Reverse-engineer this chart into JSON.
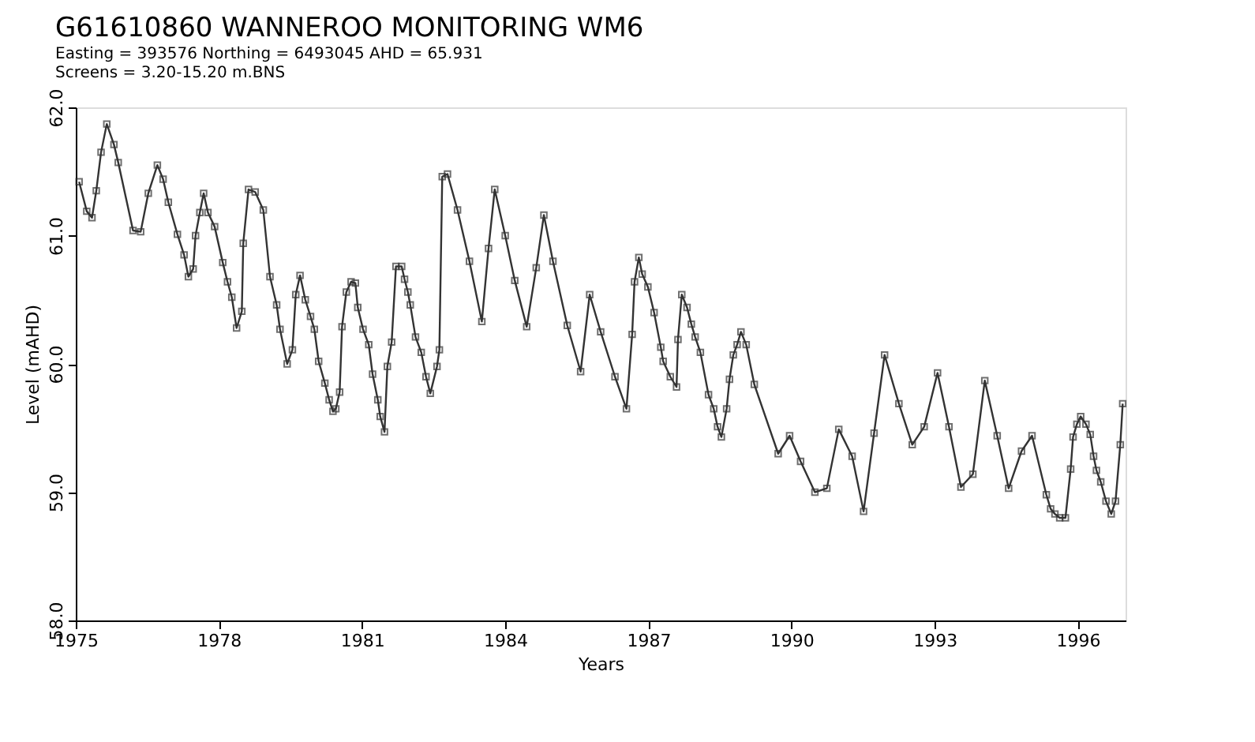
{
  "chart_data": {
    "type": "line",
    "title": "G61610860  WANNEROO  MONITORING  WM6",
    "subtitle": "Easting = 393576   Northing = 6493045    AHD =    65.931",
    "annotations": [
      "Screens = 3.20-15.20 m.BNS"
    ],
    "xlabel": "Years",
    "ylabel": "Level (mAHD)",
    "series": [
      {
        "color": "#333333",
        "x": [
          1975.07,
          1975.23,
          1975.34,
          1975.43,
          1975.53,
          1975.65,
          1975.8,
          1975.89,
          1976.2,
          1976.36,
          1976.52,
          1976.71,
          1976.83,
          1976.94,
          1977.13,
          1977.27,
          1977.36,
          1977.46,
          1977.51,
          1977.6,
          1977.68,
          1977.77,
          1977.91,
          1978.08,
          1978.18,
          1978.27,
          1978.37,
          1978.48,
          1978.51,
          1978.62,
          1978.76,
          1978.93,
          1979.07,
          1979.21,
          1979.28,
          1979.43,
          1979.54,
          1979.61,
          1979.7,
          1979.81,
          1979.92,
          1980.0,
          1980.09,
          1980.22,
          1980.31,
          1980.39,
          1980.45,
          1980.53,
          1980.58,
          1980.67,
          1980.77,
          1980.86,
          1980.91,
          1981.02,
          1981.14,
          1981.22,
          1981.33,
          1981.38,
          1981.47,
          1981.53,
          1981.62,
          1981.71,
          1981.83,
          1981.89,
          1981.96,
          1982.01,
          1982.12,
          1982.24,
          1982.34,
          1982.43,
          1982.57,
          1982.62,
          1982.68,
          1982.79,
          1983.0,
          1983.25,
          1983.51,
          1983.65,
          1983.78,
          1984.0,
          1984.2,
          1984.45,
          1984.65,
          1984.81,
          1985.0,
          1985.3,
          1985.58,
          1985.77,
          1986.0,
          1986.3,
          1986.54,
          1986.66,
          1986.71,
          1986.8,
          1986.87,
          1986.99,
          1987.12,
          1987.26,
          1987.31,
          1987.46,
          1987.59,
          1987.62,
          1987.7,
          1987.81,
          1987.9,
          1987.98,
          1988.09,
          1988.26,
          1988.37,
          1988.45,
          1988.53,
          1988.64,
          1988.7,
          1988.78,
          1988.86,
          1988.94,
          1989.05,
          1989.22,
          1989.72,
          1989.96,
          1990.19,
          1990.49,
          1990.74,
          1990.99,
          1991.27,
          1991.51,
          1991.73,
          1991.95,
          1992.25,
          1992.53,
          1992.78,
          1993.06,
          1993.3,
          1993.55,
          1993.8,
          1994.05,
          1994.31,
          1994.55,
          1994.82,
          1995.04,
          1995.34,
          1995.43,
          1995.52,
          1995.62,
          1995.74,
          1995.85,
          1995.9,
          1995.98,
          1996.06,
          1996.17,
          1996.26,
          1996.33,
          1996.39,
          1996.48,
          1996.59,
          1996.7,
          1996.79,
          1996.89,
          1996.94
        ],
        "values": [
          61.42,
          61.19,
          61.14,
          61.35,
          61.65,
          61.87,
          61.71,
          61.57,
          61.04,
          61.03,
          61.33,
          61.55,
          61.44,
          61.26,
          61.01,
          60.85,
          60.68,
          60.74,
          61.0,
          61.18,
          61.33,
          61.18,
          61.07,
          60.79,
          60.64,
          60.52,
          60.28,
          60.41,
          60.94,
          61.36,
          61.34,
          61.2,
          60.68,
          60.46,
          60.27,
          60.0,
          60.11,
          60.54,
          60.69,
          60.5,
          60.37,
          60.27,
          60.02,
          59.85,
          59.72,
          59.63,
          59.65,
          59.78,
          60.29,
          60.56,
          60.64,
          60.63,
          60.44,
          60.27,
          60.15,
          59.92,
          59.72,
          59.59,
          59.47,
          59.98,
          60.17,
          60.76,
          60.76,
          60.66,
          60.56,
          60.46,
          60.21,
          60.09,
          59.9,
          59.77,
          59.98,
          60.11,
          61.46,
          61.48,
          61.2,
          60.8,
          60.33,
          60.9,
          61.36,
          61.0,
          60.65,
          60.29,
          60.75,
          61.16,
          60.8,
          60.3,
          59.94,
          60.54,
          60.25,
          59.9,
          59.65,
          60.23,
          60.64,
          60.83,
          60.7,
          60.6,
          60.4,
          60.13,
          60.02,
          59.9,
          59.82,
          60.19,
          60.54,
          60.44,
          60.31,
          60.21,
          60.09,
          59.76,
          59.65,
          59.51,
          59.43,
          59.65,
          59.88,
          60.07,
          60.15,
          60.25,
          60.15,
          59.84,
          59.3,
          59.44,
          59.24,
          59.0,
          59.03,
          59.49,
          59.28,
          58.85,
          59.46,
          60.07,
          59.69,
          59.37,
          59.51,
          59.93,
          59.51,
          59.04,
          59.14,
          59.87,
          59.44,
          59.03,
          59.32,
          59.44,
          58.98,
          58.87,
          58.83,
          58.8,
          58.8,
          59.18,
          59.43,
          59.53,
          59.59,
          59.53,
          59.45,
          59.28,
          59.17,
          59.08,
          58.93,
          58.83,
          58.93,
          59.37,
          59.69
        ]
      }
    ],
    "xlim": [
      1975,
      1997.0
    ],
    "xticks": [
      1975,
      1978,
      1981,
      1984,
      1987,
      1990,
      1993,
      1996
    ],
    "ylim": [
      58,
      62
    ],
    "yticks": [
      {
        "value": 58,
        "label": "58.0"
      },
      {
        "value": 59,
        "label": "59.0"
      },
      {
        "value": 60,
        "label": "60.0"
      },
      {
        "value": 61,
        "label": "61.0"
      },
      {
        "value": 62,
        "label": "62.0"
      }
    ],
    "marker": "square",
    "line_style": "solid",
    "grid": false
  }
}
